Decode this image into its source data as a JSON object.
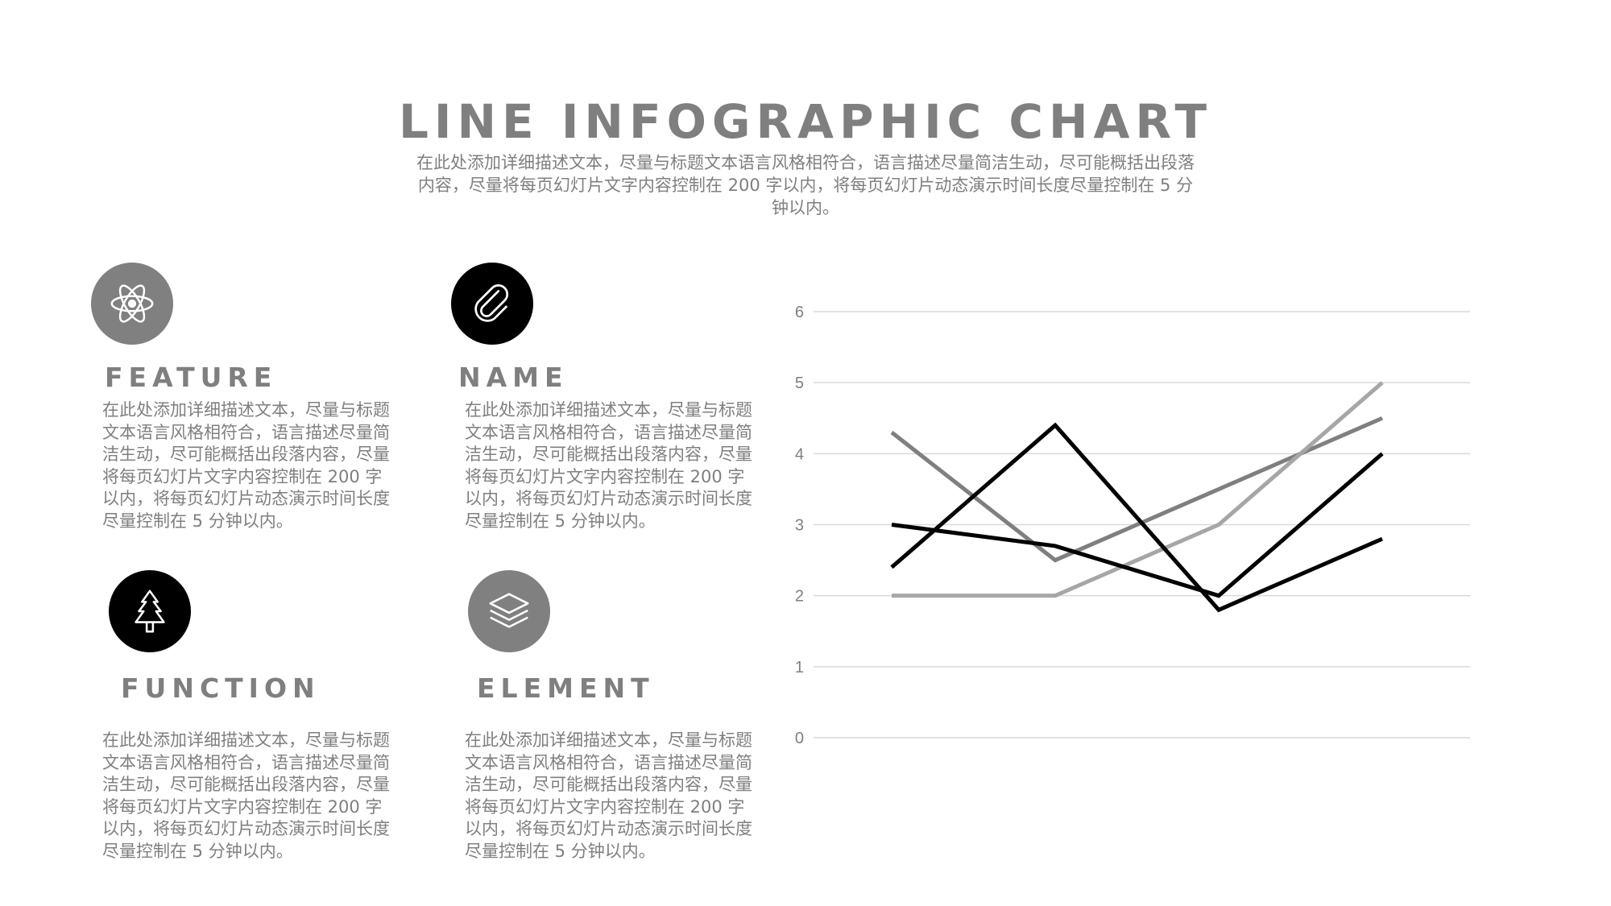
{
  "title": "LINE INFOGRAPHIC CHART",
  "subtitle": "在此处添加详细描述文本，尽量与标题文本语言风格相符合，语言描述尽量简洁生动，尽可能概括出段落内容，尽量将每页幻灯片文字内容控制在 200 字以内，将每页幻灯片动态演示时间长度尽量控制在 5 分钟以内。",
  "features": [
    {
      "heading": "FEATURE",
      "icon": "atom-icon",
      "icon_bg": "#808080",
      "text": "在此处添加详细描述文本，尽量与标题文本语言风格相符合，语言描述尽量简洁生动，尽可能概括出段落内容，尽量将每页幻灯片文字内容控制在 200 字以内，将每页幻灯片动态演示时间长度尽量控制在 5 分钟以内。"
    },
    {
      "heading": "NAME",
      "icon": "paperclip-icon",
      "icon_bg": "#000000",
      "text": "在此处添加详细描述文本，尽量与标题文本语言风格相符合，语言描述尽量简洁生动，尽可能概括出段落内容，尽量将每页幻灯片文字内容控制在 200 字以内，将每页幻灯片动态演示时间长度尽量控制在 5 分钟以内。"
    },
    {
      "heading": "FUNCTION",
      "icon": "tree-icon",
      "icon_bg": "#000000",
      "text": "在此处添加详细描述文本，尽量与标题文本语言风格相符合，语言描述尽量简洁生动，尽可能概括出段落内容，尽量将每页幻灯片文字内容控制在 200 字以内，将每页幻灯片动态演示时间长度尽量控制在 5 分钟以内。"
    },
    {
      "heading": "ELEMENT",
      "icon": "layers-icon",
      "icon_bg": "#808080",
      "text": "在此处添加详细描述文本，尽量与标题文本语言风格相符合，语言描述尽量简洁生动，尽可能概括出段落内容，尽量将每页幻灯片文字内容控制在 200 字以内，将每页幻灯片动态演示时间长度尽量控制在 5 分钟以内。"
    }
  ],
  "chart_data": {
    "type": "line",
    "x": [
      1,
      2,
      3,
      4
    ],
    "ylim": [
      0,
      6
    ],
    "yticks": [
      "0",
      "1",
      "2",
      "3",
      "4",
      "5",
      "6"
    ],
    "grid": true,
    "legend": "none",
    "series": [
      {
        "values": [
          4.3,
          2.5,
          3.5,
          4.5
        ],
        "color": "#7f7f7f"
      },
      {
        "values": [
          2.0,
          2.0,
          3.0,
          5.0
        ],
        "color": "#a6a6a6"
      },
      {
        "values": [
          2.4,
          4.4,
          1.8,
          2.8
        ],
        "color": "#000000"
      },
      {
        "values": [
          3.0,
          2.7,
          2.0,
          4.0
        ],
        "color": "#000000"
      }
    ]
  }
}
